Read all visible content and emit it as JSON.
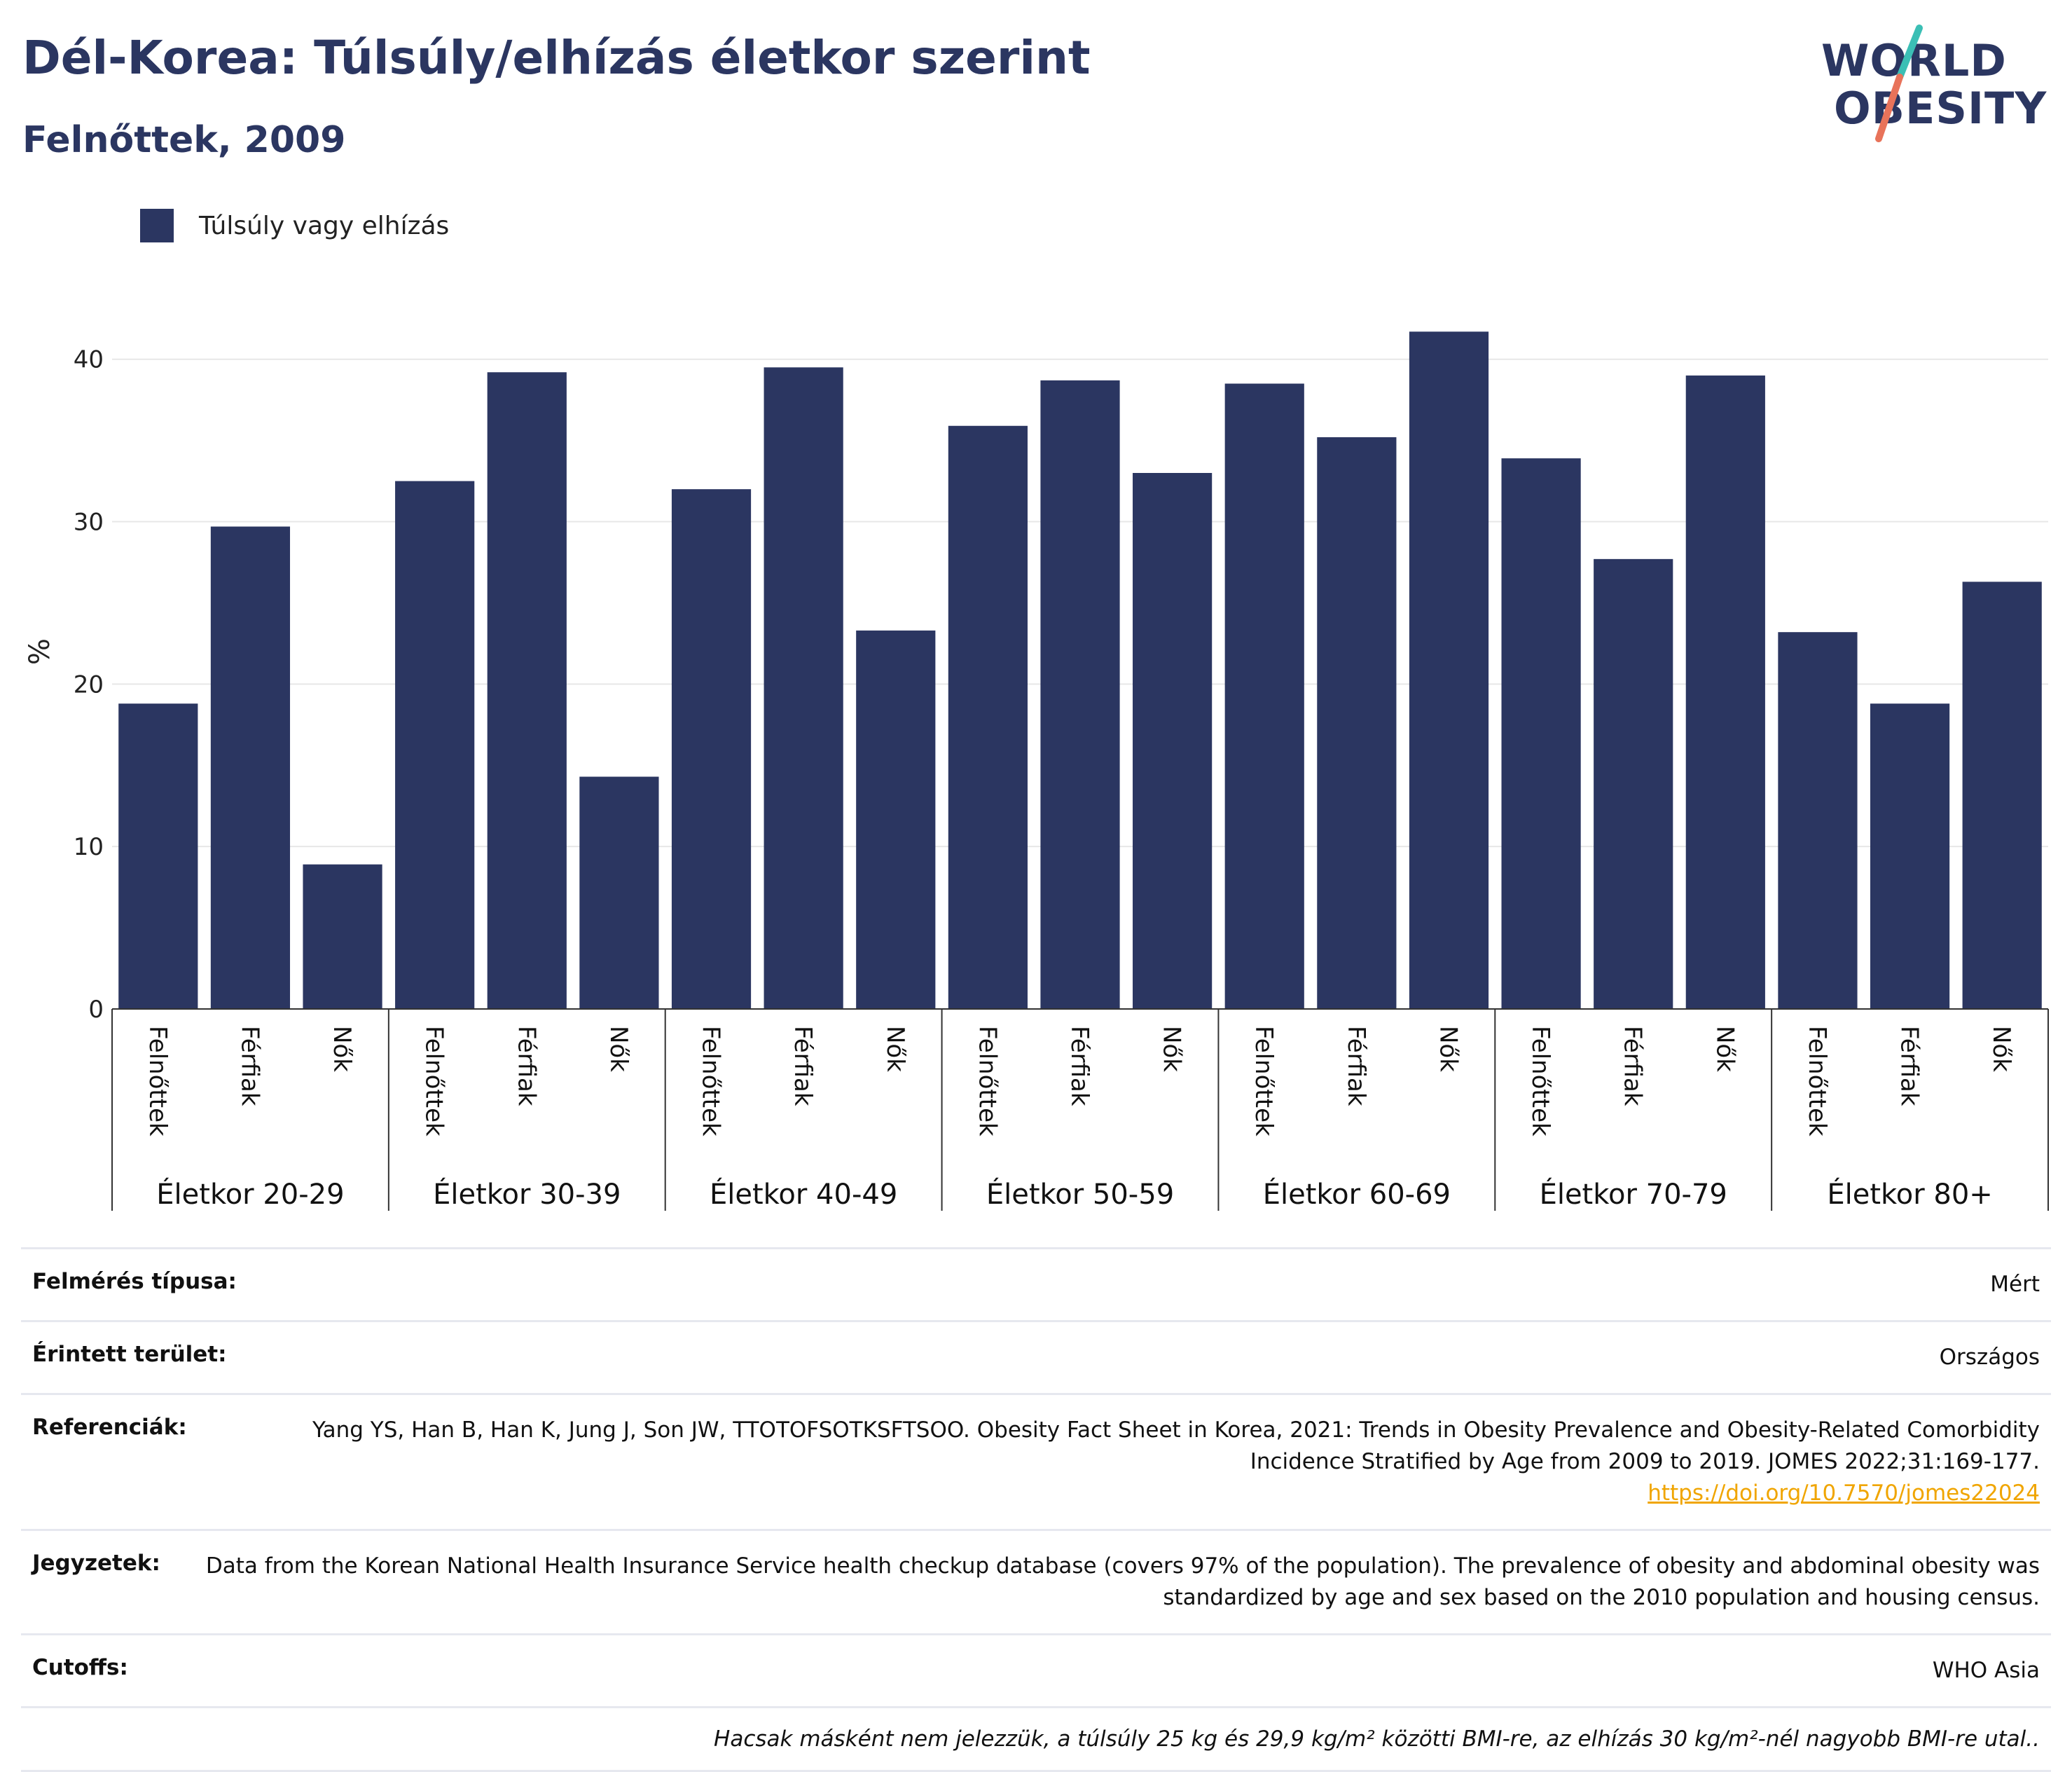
{
  "title": "Dél-Korea: Túlsúly/elhízás életkor szerint",
  "subtitle": "Felnőttek, 2009",
  "logo": {
    "line1": "WORLD",
    "line2": "OBESITY"
  },
  "colors": {
    "bar": "#2b3661",
    "brand": "#2b3661",
    "link": "#f0a500",
    "logo_teal": "#3bbfb5",
    "logo_coral": "#e8735a"
  },
  "chart_data": {
    "type": "bar",
    "legend": "Túlsúly vagy elhízás",
    "ylabel": "%",
    "ylim": [
      0,
      44
    ],
    "yticks": [
      0,
      10,
      20,
      30,
      40
    ],
    "grid": true,
    "legend_position": "top-left",
    "groups": [
      {
        "label": "Életkor 20-29",
        "categories": [
          "Felnőttek",
          "Férfiak",
          "Nők"
        ],
        "values": [
          18.8,
          29.7,
          8.9
        ]
      },
      {
        "label": "Életkor 30-39",
        "categories": [
          "Felnőttek",
          "Férfiak",
          "Nők"
        ],
        "values": [
          32.5,
          39.2,
          14.3
        ]
      },
      {
        "label": "Életkor 40-49",
        "categories": [
          "Felnőttek",
          "Férfiak",
          "Nők"
        ],
        "values": [
          32.0,
          39.5,
          23.3
        ]
      },
      {
        "label": "Életkor 50-59",
        "categories": [
          "Felnőttek",
          "Férfiak",
          "Nők"
        ],
        "values": [
          35.9,
          38.7,
          33.0
        ]
      },
      {
        "label": "Életkor 60-69",
        "categories": [
          "Felnőttek",
          "Férfiak",
          "Nők"
        ],
        "values": [
          38.5,
          35.2,
          41.7
        ]
      },
      {
        "label": "Életkor 70-79",
        "categories": [
          "Felnőttek",
          "Férfiak",
          "Nők"
        ],
        "values": [
          33.9,
          27.7,
          39.0
        ]
      },
      {
        "label": "Életkor 80+",
        "categories": [
          "Felnőttek",
          "Férfiak",
          "Nők"
        ],
        "values": [
          23.2,
          18.8,
          26.3
        ]
      }
    ]
  },
  "info": {
    "rows": [
      {
        "label": "Felmérés típusa:",
        "value": "Mért"
      },
      {
        "label": "Érintett terület:",
        "value": "Országos"
      },
      {
        "label": "Referenciák:",
        "value": "Yang YS, Han B, Han K, Jung J, Son JW, TTOTOFSOTKSFTSOO. Obesity Fact Sheet in Korea, 2021: Trends in Obesity Prevalence and Obesity-Related Comorbidity Incidence Stratified by Age from 2009 to 2019. JOMES 2022;31:169-177.",
        "link": "https://doi.org/10.7570/jomes22024"
      },
      {
        "label": "Jegyzetek:",
        "value": "Data from the Korean National Health Insurance Service health checkup database (covers 97% of the population). The prevalence of obesity and abdominal obesity was standardized by age and sex based on the 2010 population and housing census."
      },
      {
        "label": "Cutoffs:",
        "value": "WHO Asia"
      }
    ],
    "footnote": "Hacsak másként nem jelezzük, a túlsúly 25 kg és 29,9 kg/m² közötti BMI-re, az elhízás 30 kg/m²-nél nagyobb BMI-re utal.."
  }
}
